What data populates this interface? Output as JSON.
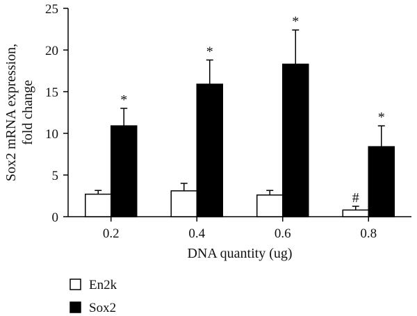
{
  "chart_data": {
    "type": "bar",
    "categories": [
      "0.2",
      "0.4",
      "0.6",
      "0.8"
    ],
    "series": [
      {
        "name": "En2k",
        "color": "#ffffff",
        "values": [
          2.7,
          3.1,
          2.6,
          0.8
        ],
        "errors": [
          0.45,
          0.9,
          0.55,
          0.45
        ],
        "marks": [
          "",
          "",
          "",
          "#"
        ]
      },
      {
        "name": "Sox2",
        "color": "#000000",
        "values": [
          10.9,
          15.9,
          18.3,
          8.4
        ],
        "errors": [
          2.1,
          2.9,
          4.1,
          2.5
        ],
        "marks": [
          "*",
          "*",
          "*",
          "*"
        ]
      }
    ],
    "xlabel": "DNA quantity (ug)",
    "ylabel_lines": [
      "Sox2 mRNA expression,",
      "fold change"
    ],
    "ylim": [
      0,
      25
    ],
    "yticks": [
      0,
      5,
      10,
      15,
      20,
      25
    ],
    "grid": false,
    "legend_position": "bottom-left"
  }
}
